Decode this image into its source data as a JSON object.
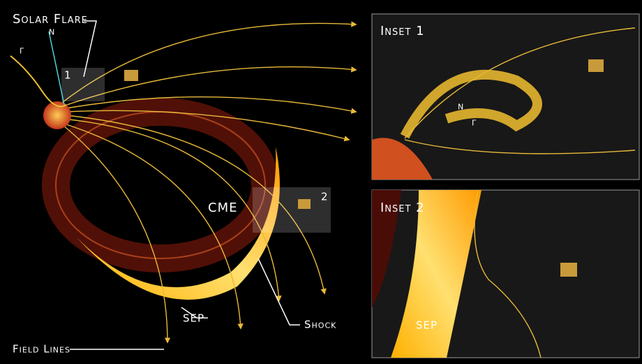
{
  "main": {
    "flare": "Solar Flare",
    "cme": "CME",
    "sep": "SEP",
    "shock": "Shock",
    "field_lines": "Field Lines",
    "gamma": "γ",
    "neutron": "n",
    "box1": "1",
    "box2": "2"
  },
  "insets": [
    {
      "title": "Inset 1",
      "neutron": "n",
      "gamma": "γ"
    },
    {
      "title": "Inset 2",
      "sep": "SEP"
    }
  ]
}
